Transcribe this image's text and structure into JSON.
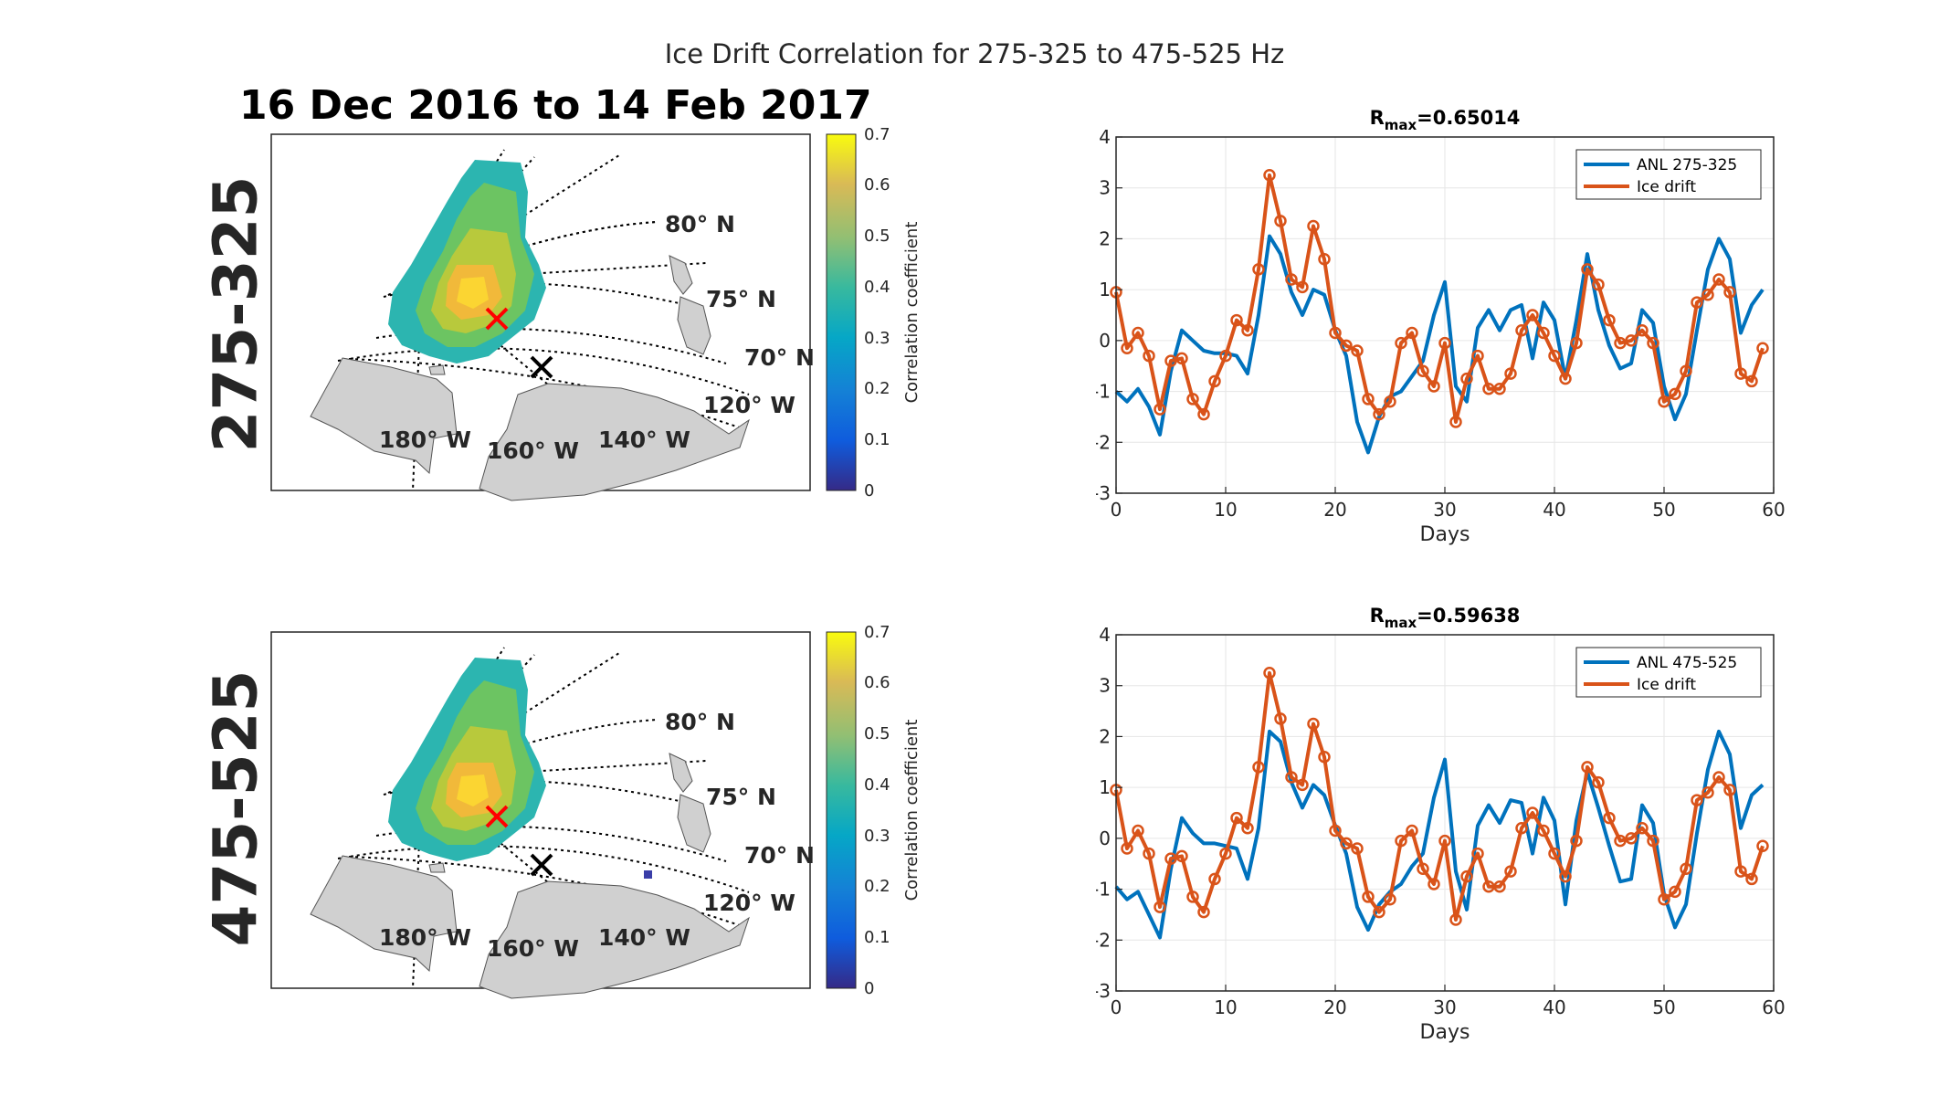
{
  "figure": {
    "suptitle": "Ice Drift Correlation for 275-325 to 475-525 Hz",
    "period_title": "16 Dec 2016 to 14 Feb 2017"
  },
  "maps": [
    {
      "band_label": "275-325",
      "lat_labels": [
        "80° N",
        "75° N",
        "70° N"
      ],
      "lon_labels": [
        "180° W",
        "160° W",
        "140° W",
        "120° W"
      ],
      "colorbar": {
        "label": "Correlation coefficient",
        "ticks": [
          "0.7",
          "0.6",
          "0.5",
          "0.4",
          "0.3",
          "0.2",
          "0.1",
          "0"
        ]
      }
    },
    {
      "band_label": "475-525",
      "lat_labels": [
        "80° N",
        "75° N",
        "70° N"
      ],
      "lon_labels": [
        "180° W",
        "160° W",
        "140° W",
        "120° W"
      ],
      "colorbar": {
        "label": "Correlation coefficient",
        "ticks": [
          "0.7",
          "0.6",
          "0.5",
          "0.4",
          "0.3",
          "0.2",
          "0.1",
          "0"
        ]
      }
    }
  ],
  "chart_data": [
    {
      "type": "line",
      "title_prefix": "R",
      "title_sub": "max",
      "title_value": "=0.65014",
      "xlabel": "Days",
      "ylabel": "",
      "xlim": [
        0,
        60
      ],
      "ylim": [
        -3,
        4
      ],
      "xticks": [
        0,
        10,
        20,
        30,
        40,
        50,
        60
      ],
      "yticks": [
        -3,
        -2,
        -1,
        0,
        1,
        2,
        3,
        4
      ],
      "grid": true,
      "legend_position": "top-right",
      "x": [
        0,
        1,
        2,
        3,
        4,
        5,
        6,
        7,
        8,
        9,
        10,
        11,
        12,
        13,
        14,
        15,
        16,
        17,
        18,
        19,
        20,
        21,
        22,
        23,
        24,
        25,
        26,
        27,
        28,
        29,
        30,
        31,
        32,
        33,
        34,
        35,
        36,
        37,
        38,
        39,
        40,
        41,
        42,
        43,
        44,
        45,
        46,
        47,
        48,
        49,
        50,
        51,
        52,
        53,
        54,
        55,
        56,
        57,
        58,
        59
      ],
      "series": [
        {
          "name": "ANL 275-325",
          "color": "#0072BD",
          "markers": false,
          "values": [
            -1.0,
            -1.2,
            -0.95,
            -1.3,
            -1.85,
            -0.6,
            0.2,
            0.0,
            -0.2,
            -0.25,
            -0.25,
            -0.3,
            -0.65,
            0.5,
            2.05,
            1.7,
            0.95,
            0.5,
            1.0,
            0.9,
            0.2,
            -0.3,
            -1.6,
            -2.2,
            -1.5,
            -1.1,
            -1.0,
            -0.7,
            -0.4,
            0.5,
            1.15,
            -0.9,
            -1.2,
            0.25,
            0.6,
            0.2,
            0.6,
            0.7,
            -0.35,
            0.75,
            0.4,
            -0.75,
            0.4,
            1.7,
            0.6,
            -0.1,
            -0.55,
            -0.45,
            0.6,
            0.35,
            -0.9,
            -1.55,
            -1.05,
            0.2,
            1.4,
            2.0,
            1.6,
            0.15,
            0.7,
            1.0
          ]
        },
        {
          "name": "Ice drift",
          "color": "#D95319",
          "markers": true,
          "values": [
            0.95,
            -0.15,
            0.15,
            -0.3,
            -1.35,
            -0.4,
            -0.35,
            -1.15,
            -1.45,
            -0.8,
            -0.3,
            0.4,
            0.2,
            1.4,
            3.25,
            2.35,
            1.2,
            1.05,
            2.25,
            1.6,
            0.15,
            -0.1,
            -0.2,
            -1.15,
            -1.45,
            -1.2,
            -0.05,
            0.15,
            -0.6,
            -0.9,
            -0.05,
            -1.6,
            -0.75,
            -0.3,
            -0.95,
            -0.95,
            -0.65,
            0.2,
            0.5,
            0.15,
            -0.3,
            -0.75,
            -0.05,
            1.4,
            1.1,
            0.4,
            -0.05,
            0.0,
            0.2,
            -0.05,
            -1.2,
            -1.05,
            -0.6,
            0.75,
            0.9,
            1.2,
            0.95,
            -0.65,
            -0.8,
            -0.15
          ]
        }
      ]
    },
    {
      "type": "line",
      "title_prefix": "R",
      "title_sub": "max",
      "title_value": "=0.59638",
      "xlabel": "Days",
      "ylabel": "",
      "xlim": [
        0,
        60
      ],
      "ylim": [
        -3,
        4
      ],
      "xticks": [
        0,
        10,
        20,
        30,
        40,
        50,
        60
      ],
      "yticks": [
        -3,
        -2,
        -1,
        0,
        1,
        2,
        3,
        4
      ],
      "grid": true,
      "legend_position": "top-right",
      "x": [
        0,
        1,
        2,
        3,
        4,
        5,
        6,
        7,
        8,
        9,
        10,
        11,
        12,
        13,
        14,
        15,
        16,
        17,
        18,
        19,
        20,
        21,
        22,
        23,
        24,
        25,
        26,
        27,
        28,
        29,
        30,
        31,
        32,
        33,
        34,
        35,
        36,
        37,
        38,
        39,
        40,
        41,
        42,
        43,
        44,
        45,
        46,
        47,
        48,
        49,
        50,
        51,
        52,
        53,
        54,
        55,
        56,
        57,
        58,
        59
      ],
      "series": [
        {
          "name": "ANL 475-525",
          "color": "#0072BD",
          "markers": false,
          "values": [
            -0.95,
            -1.2,
            -1.05,
            -1.5,
            -1.95,
            -0.6,
            0.4,
            0.1,
            -0.1,
            -0.1,
            -0.15,
            -0.2,
            -0.8,
            0.2,
            2.1,
            1.9,
            1.1,
            0.6,
            1.05,
            0.85,
            0.25,
            -0.3,
            -1.35,
            -1.8,
            -1.3,
            -1.05,
            -0.9,
            -0.55,
            -0.3,
            0.8,
            1.55,
            -0.65,
            -1.4,
            0.25,
            0.65,
            0.3,
            0.75,
            0.7,
            -0.3,
            0.8,
            0.35,
            -1.3,
            0.35,
            1.3,
            0.6,
            -0.15,
            -0.85,
            -0.8,
            0.65,
            0.3,
            -1.1,
            -1.75,
            -1.3,
            0.1,
            1.35,
            2.1,
            1.65,
            0.2,
            0.85,
            1.05
          ]
        },
        {
          "name": "Ice drift",
          "color": "#D95319",
          "markers": true,
          "values": [
            0.95,
            -0.2,
            0.15,
            -0.3,
            -1.35,
            -0.4,
            -0.35,
            -1.15,
            -1.45,
            -0.8,
            -0.3,
            0.4,
            0.2,
            1.4,
            3.25,
            2.35,
            1.2,
            1.05,
            2.25,
            1.6,
            0.15,
            -0.1,
            -0.2,
            -1.15,
            -1.45,
            -1.2,
            -0.05,
            0.15,
            -0.6,
            -0.9,
            -0.05,
            -1.6,
            -0.75,
            -0.3,
            -0.95,
            -0.95,
            -0.65,
            0.2,
            0.5,
            0.15,
            -0.3,
            -0.75,
            -0.05,
            1.4,
            1.1,
            0.4,
            -0.05,
            0.0,
            0.2,
            -0.05,
            -1.2,
            -1.05,
            -0.6,
            0.75,
            0.9,
            1.2,
            0.95,
            -0.65,
            -0.8,
            -0.15
          ]
        }
      ]
    }
  ]
}
